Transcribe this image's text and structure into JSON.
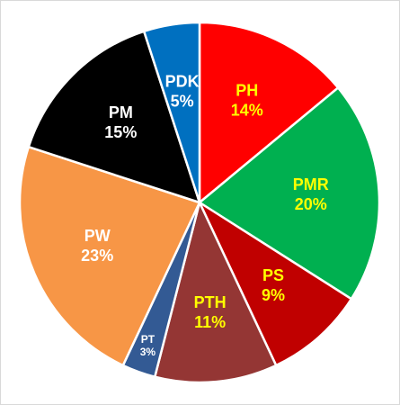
{
  "chart_data": {
    "type": "pie",
    "categories": [
      "PH",
      "PMR",
      "PS",
      "PTH",
      "PT",
      "PW",
      "PM",
      "PDK"
    ],
    "values": [
      14,
      20,
      9,
      11,
      3,
      23,
      15,
      5
    ],
    "value_labels": [
      "14%",
      "20%",
      "9%",
      "11%",
      "3%",
      "23%",
      "15%",
      "5%"
    ],
    "colors": [
      "#ff0000",
      "#00b050",
      "#c00000",
      "#943634",
      "#335a94",
      "#f79646",
      "#000000",
      "#0070c0"
    ],
    "label_colors": [
      "#ffff00",
      "#ffff00",
      "#ffff00",
      "#ffff00",
      "#ffffff",
      "#ffffff",
      "#ffffff",
      "#ffffff"
    ]
  }
}
